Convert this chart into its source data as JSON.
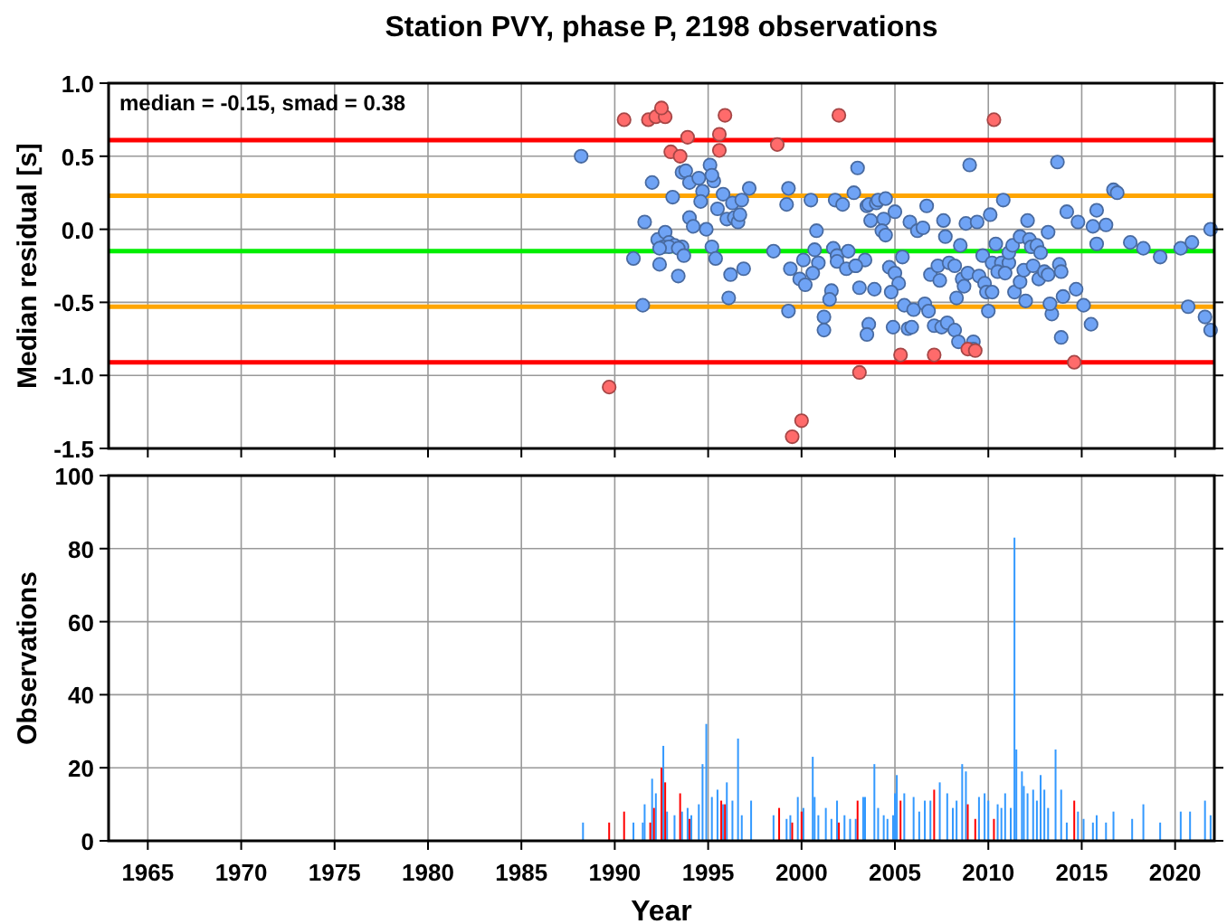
{
  "chart_data": [
    {
      "type": "scatter",
      "title": "Station PVY, phase P, 2198 observations",
      "ylabel": "Median residual [s]",
      "annotations": [
        "median = -0.15, smad = 0.38"
      ],
      "xlim": [
        1962.9,
        2022.1
      ],
      "xticks": [
        1965,
        1970,
        1975,
        1980,
        1985,
        1990,
        1995,
        2000,
        2005,
        2010,
        2015,
        2020
      ],
      "ylim": [
        -1.5,
        1.0
      ],
      "yticks": [
        {
          "value": -1.5,
          "label": "-1.5"
        },
        {
          "value": -1.0,
          "label": "-1.0"
        },
        {
          "value": -0.5,
          "label": "-0.5"
        },
        {
          "value": 0,
          "label": "0.0"
        },
        {
          "value": 0.5,
          "label": "0.5"
        },
        {
          "value": 1.0,
          "label": "1.0"
        }
      ],
      "tick_labels": "y",
      "grid": true,
      "marker": "circle",
      "ref_lines": [
        {
          "axis": "y",
          "value": 0.61,
          "color": "#ff0000"
        },
        {
          "axis": "y",
          "value": 0.23,
          "color": "#ffa500"
        },
        {
          "axis": "y",
          "value": -0.15,
          "color": "#00ee00"
        },
        {
          "axis": "y",
          "value": -0.53,
          "color": "#ffa500"
        },
        {
          "axis": "y",
          "value": -0.91,
          "color": "#ff0000"
        }
      ],
      "series": [
        {
          "color": "#6fa3f5",
          "x": [
            1988.2,
            1992.0,
            1993.1,
            1991.6,
            1991.0,
            1991.5,
            1992.4,
            1992.3,
            1992.7,
            1992.9,
            1993.2,
            1993.6,
            1992.6,
            1992.9,
            1993.4,
            1992.4,
            1993.7,
            1993.4,
            1994.0,
            1994.2,
            1993.6,
            1993.8,
            1994.0,
            1994.5,
            1995.1,
            1995.3,
            1995.2,
            1994.7,
            1994.6,
            1994.9,
            1995.2,
            1995.4,
            1995.5,
            1995.8,
            1996.3,
            1996.8,
            1997.2,
            1996.0,
            1996.4,
            1996.6,
            1996.7,
            1996.2,
            1996.9,
            1996.1,
            1998.5,
            1999.3,
            1999.2,
            1999.4,
            1999.3,
            1999.9,
            2000.2,
            2000.1,
            2000.9,
            2000.6,
            2000.8,
            2000.7,
            2001.7,
            2001.9,
            2002.5,
            2001.9,
            2002.4,
            2002.9,
            2001.6,
            2001.5,
            2001.2,
            2001.2,
            2000.5,
            2001.8,
            2002.2,
            2002.8,
            2003.0,
            2003.5,
            2003.1,
            2003.6,
            2004.0,
            2004.1,
            2004.5,
            2003.7,
            2004.4,
            2005.0,
            2004.3,
            2004.5,
            2003.4,
            2002.9,
            2005.4,
            2004.7,
            2005.0,
            2005.2,
            2004.8,
            2003.9,
            2005.5,
            2006.0,
            2006.6,
            2006.8,
            2003.6,
            2003.5,
            2004.9,
            2005.7,
            2005.9,
            2007.1,
            2007.5,
            2007.8,
            2008.2,
            2008.4,
            2009.2,
            2009.2,
            2005.8,
            2006.2,
            2006.5,
            2006.7,
            2007.6,
            2007.7,
            2008.5,
            2008.8,
            2009.4,
            2010.1,
            2010.8,
            2009.0,
            2006.9,
            2007.3,
            2007.4,
            2007.9,
            2008.2,
            2008.6,
            2008.7,
            2008.9,
            2008.3,
            2009.5,
            2009.8,
            2009.9,
            2010.2,
            2010.0,
            2009.7,
            2010.2,
            2010.7,
            2011.1,
            2010.5,
            2010.9,
            2010.4,
            2011.1,
            2011.3,
            2011.7,
            2011.4,
            2011.7,
            2011.9,
            2012.0,
            2012.1,
            2012.2,
            2012.3,
            2012.6,
            2012.4,
            2012.8,
            2012.7,
            2013.0,
            2013.2,
            2013.2,
            2013.8,
            2013.9,
            2014.0,
            2013.4,
            2013.3,
            2013.9,
            2013.7,
            2014.2,
            2014.8,
            2015.6,
            2015.8,
            2016.3,
            2015.8,
            2014.7,
            2015.1,
            2015.5,
            2016.7,
            2016.9,
            2017.6,
            2018.3,
            2019.2,
            2020.3,
            2020.9,
            2020.7,
            2021.6,
            2021.9,
            2021.9
          ],
          "values": [
            0.5,
            0.32,
            0.22,
            0.05,
            -0.2,
            -0.52,
            -0.24,
            -0.07,
            -0.02,
            -0.09,
            -0.11,
            -0.12,
            -0.12,
            -0.12,
            -0.13,
            -0.13,
            -0.18,
            -0.32,
            0.08,
            0.02,
            0.39,
            0.4,
            0.32,
            0.35,
            0.44,
            0.33,
            0.37,
            0.26,
            0.19,
            0.0,
            -0.12,
            -0.2,
            0.14,
            0.24,
            0.18,
            0.2,
            0.28,
            0.07,
            0.08,
            0.05,
            0.1,
            -0.31,
            -0.27,
            -0.47,
            -0.15,
            0.28,
            0.17,
            -0.27,
            -0.56,
            -0.34,
            -0.38,
            -0.21,
            -0.23,
            -0.3,
            -0.01,
            -0.14,
            -0.13,
            -0.18,
            -0.15,
            -0.22,
            -0.27,
            -0.25,
            -0.42,
            -0.48,
            -0.6,
            -0.69,
            0.2,
            0.2,
            0.17,
            0.25,
            0.42,
            0.16,
            -0.4,
            0.17,
            0.18,
            0.2,
            0.21,
            0.06,
            0.07,
            0.12,
            -0.01,
            -0.04,
            -0.21,
            -0.25,
            -0.19,
            -0.26,
            -0.3,
            -0.37,
            -0.43,
            -0.41,
            -0.52,
            -0.55,
            -0.51,
            -0.56,
            -0.65,
            -0.72,
            -0.67,
            -0.68,
            -0.67,
            -0.66,
            -0.67,
            -0.64,
            -0.69,
            -0.77,
            -0.77,
            -0.82,
            0.05,
            -0.01,
            0.01,
            0.16,
            0.06,
            -0.05,
            -0.11,
            0.04,
            0.05,
            0.1,
            0.2,
            0.44,
            -0.31,
            -0.25,
            -0.35,
            -0.23,
            -0.25,
            -0.34,
            -0.39,
            -0.3,
            -0.47,
            -0.32,
            -0.37,
            -0.43,
            -0.43,
            -0.56,
            -0.18,
            -0.23,
            -0.23,
            -0.23,
            -0.29,
            -0.3,
            -0.1,
            -0.16,
            -0.11,
            -0.05,
            -0.43,
            -0.36,
            -0.28,
            -0.49,
            0.06,
            -0.07,
            -0.12,
            -0.11,
            -0.25,
            -0.16,
            -0.34,
            -0.29,
            -0.31,
            -0.02,
            -0.24,
            -0.29,
            -0.46,
            -0.58,
            -0.51,
            -0.74,
            0.46,
            0.12,
            0.05,
            0.02,
            0.13,
            0.03,
            -0.1,
            -0.41,
            -0.52,
            -0.65,
            0.27,
            0.25,
            -0.09,
            -0.13,
            -0.19,
            -0.13,
            -0.09,
            -0.53,
            -0.6,
            -0.69,
            0.0
          ]
        },
        {
          "color": "#ff6b6b",
          "x": [
            1990.5,
            1991.8,
            1992.2,
            1992.7,
            1992.5,
            1993.9,
            1995.6,
            1993.0,
            1993.5,
            1995.6,
            1995.9,
            1998.7,
            2002.0,
            2003.1,
            1989.7,
            2000.0,
            1999.5,
            2010.3,
            2005.3,
            2007.1,
            2008.9,
            2009.3,
            2014.6
          ],
          "values": [
            0.75,
            0.75,
            0.77,
            0.77,
            0.83,
            0.63,
            0.65,
            0.53,
            0.5,
            0.54,
            0.78,
            0.58,
            0.78,
            -0.98,
            -1.08,
            -1.31,
            -1.42,
            0.75,
            -0.86,
            -0.86,
            -0.82,
            -0.83,
            -0.91
          ]
        }
      ]
    },
    {
      "type": "bar",
      "ylabel": "Observations",
      "xlabel": "Year",
      "xlim": [
        1962.9,
        2022.1
      ],
      "xticks": [
        1965,
        1970,
        1975,
        1980,
        1985,
        1990,
        1995,
        2000,
        2005,
        2010,
        2015,
        2020
      ],
      "ylim": [
        0,
        100
      ],
      "yticks": [
        0,
        20,
        40,
        60,
        80,
        100
      ],
      "grid": true,
      "series": [
        {
          "color": "#3399ff",
          "x": [
            1988.3,
            1991.0,
            1991.5,
            1991.6,
            1992.0,
            1992.2,
            1992.6,
            1992.8,
            1993.2,
            1993.6,
            1993.9,
            1994.1,
            1994.5,
            1994.7,
            1994.9,
            1995.2,
            1995.5,
            1995.8,
            1996.0,
            1996.3,
            1996.6,
            1996.8,
            1997.3,
            1998.5,
            1999.2,
            1999.4,
            1999.8,
            2000.1,
            2000.6,
            2000.7,
            2000.9,
            2001.3,
            2001.6,
            2001.9,
            2002.3,
            2002.6,
            2002.9,
            2003.3,
            2003.4,
            2003.9,
            2004.1,
            2004.4,
            2004.6,
            2004.9,
            2005.0,
            2005.1,
            2005.5,
            2006.0,
            2006.3,
            2006.6,
            2006.9,
            2007.4,
            2007.8,
            2008.1,
            2008.3,
            2008.6,
            2008.8,
            2009.5,
            2009.8,
            2010.0,
            2010.5,
            2010.7,
            2010.9,
            2011.2,
            2011.4,
            2011.5,
            2011.8,
            2011.9,
            2012.1,
            2012.4,
            2012.6,
            2012.8,
            2013.0,
            2013.2,
            2013.6,
            2013.9,
            2014.2,
            2014.8,
            2015.1,
            2015.6,
            2015.8,
            2016.3,
            2016.7,
            2017.7,
            2018.3,
            2019.2,
            2020.3,
            2020.8,
            2021.6,
            2021.9
          ],
          "values": [
            5,
            5,
            5,
            10,
            17,
            13,
            26,
            8,
            7,
            8,
            9,
            7,
            10,
            21,
            32,
            12,
            14,
            10,
            16,
            11,
            28,
            7,
            11,
            7,
            6,
            7,
            12,
            9,
            23,
            12,
            7,
            9,
            6,
            11,
            7,
            6,
            6,
            12,
            12,
            21,
            9,
            7,
            6,
            7,
            13,
            18,
            13,
            12,
            8,
            11,
            11,
            16,
            13,
            9,
            11,
            21,
            19,
            12,
            13,
            11,
            10,
            9,
            13,
            9,
            83,
            25,
            19,
            15,
            13,
            14,
            11,
            18,
            14,
            9,
            25,
            14,
            5,
            8,
            6,
            5,
            7,
            5,
            8,
            6,
            10,
            5,
            8,
            8,
            11,
            7
          ]
        },
        {
          "color": "#ff0000",
          "x": [
            1989.7,
            1990.5,
            1991.9,
            1992.1,
            1992.5,
            1992.7,
            1993.5,
            1994.0,
            1995.7,
            1995.9,
            1998.8,
            1999.5,
            2000.0,
            2002.0,
            2003.0,
            2005.3,
            2007.1,
            2008.9,
            2009.3,
            2010.3,
            2014.6
          ],
          "values": [
            5,
            8,
            5,
            9,
            20,
            16,
            13,
            6,
            11,
            10,
            9,
            5,
            8,
            5,
            11,
            11,
            14,
            10,
            6,
            6,
            11
          ]
        }
      ]
    }
  ]
}
